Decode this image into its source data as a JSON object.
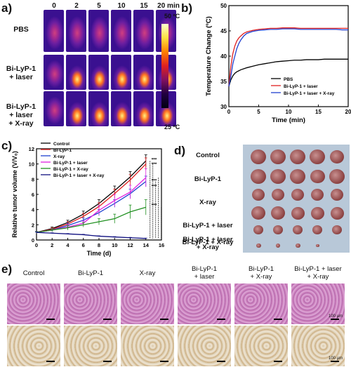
{
  "panel_labels": {
    "a": "a)",
    "b": "b)",
    "c": "c)",
    "d": "d)",
    "e": "e)"
  },
  "panel_a": {
    "time_labels": [
      "0",
      "2",
      "5",
      "10",
      "15",
      "20 min"
    ],
    "row_labels": [
      "PBS",
      "Bi-LyP-1\n+ laser",
      "Bi-LyP-1\n+ laser\n+ X-ray"
    ],
    "colorbar_max": "50 ºC",
    "colorbar_min": "25 ºC"
  },
  "chart_data": [
    {
      "type": "line",
      "panel": "b",
      "xlabel": "Time (min)",
      "ylabel": "Temperature Change (ºC)",
      "xlim": [
        0,
        20
      ],
      "ylim": [
        30,
        50
      ],
      "xticks": [
        0,
        5,
        10,
        15,
        20
      ],
      "yticks": [
        30,
        35,
        40,
        45,
        50
      ],
      "legend_position": "bottom-right",
      "series": [
        {
          "name": "PBS",
          "color": "#000000",
          "marker": "square",
          "x": [
            0,
            0.33,
            0.67,
            1,
            1.33,
            1.67,
            2,
            2.5,
            3,
            4,
            5,
            6,
            7,
            8,
            9,
            10,
            11,
            12,
            13,
            14,
            15,
            16,
            17,
            18,
            19,
            20
          ],
          "y": [
            34,
            35.3,
            36.1,
            36.6,
            36.9,
            37.1,
            37.3,
            37.5,
            37.7,
            38,
            38.3,
            38.5,
            38.7,
            38.9,
            39,
            39.1,
            39.2,
            39.2,
            39.3,
            39.3,
            39.3,
            39.4,
            39.4,
            39.4,
            39.4,
            39.4
          ]
        },
        {
          "name": "Bi-LyP-1 + laser",
          "color": "#e02020",
          "marker": "circle",
          "x": [
            0,
            0.33,
            0.67,
            1,
            1.33,
            1.67,
            2,
            2.5,
            3,
            4,
            5,
            6,
            7,
            8,
            9,
            10,
            11,
            12,
            13,
            14,
            15,
            16,
            17,
            18,
            19,
            20
          ],
          "y": [
            34,
            38,
            40.5,
            42,
            43,
            43.6,
            44,
            44.5,
            44.8,
            45.1,
            45.3,
            45.4,
            45.5,
            45.5,
            45.6,
            45.6,
            45.6,
            45.5,
            45.5,
            45.5,
            45.5,
            45.5,
            45.5,
            45.5,
            45.5,
            45.5
          ]
        },
        {
          "name": "Bi-LyP-1 + laser + X-ray",
          "color": "#2040d0",
          "marker": "triangle",
          "x": [
            0,
            0.33,
            0.67,
            1,
            1.33,
            1.67,
            2,
            2.5,
            3,
            4,
            5,
            6,
            7,
            8,
            9,
            10,
            11,
            12,
            13,
            14,
            15,
            16,
            17,
            18,
            19,
            20
          ],
          "y": [
            34,
            36,
            38.5,
            40,
            41.5,
            42.5,
            43.2,
            44,
            44.5,
            44.9,
            45.1,
            45.2,
            45.3,
            45.3,
            45.4,
            45.4,
            45.4,
            45.3,
            45.3,
            45.3,
            45.3,
            45.3,
            45.3,
            45.3,
            45.2,
            45.2
          ]
        }
      ]
    },
    {
      "type": "line",
      "panel": "c",
      "xlabel": "Time (d)",
      "ylabel": "Relative tumor volume (V/V₀)",
      "xlim": [
        0,
        16
      ],
      "ylim": [
        0,
        12
      ],
      "xticks": [
        0,
        2,
        4,
        6,
        8,
        10,
        12,
        14,
        16
      ],
      "yticks": [
        0,
        2,
        4,
        6,
        8,
        10,
        12
      ],
      "legend_position": "top-left",
      "significance": "***",
      "series": [
        {
          "name": "Control",
          "color": "#000000",
          "marker": "square",
          "x": [
            0,
            2,
            4,
            6,
            8,
            10,
            12,
            14
          ],
          "y": [
            1,
            1.5,
            2.3,
            3.4,
            4.8,
            6.5,
            8.3,
            10.4
          ],
          "err": [
            0.1,
            0.2,
            0.3,
            0.4,
            0.5,
            0.6,
            0.7,
            0.8
          ]
        },
        {
          "name": "Bi-LyP-1",
          "color": "#e02020",
          "marker": "circle",
          "x": [
            0,
            2,
            4,
            6,
            8,
            10,
            12,
            14
          ],
          "y": [
            1,
            1.4,
            2.1,
            3.1,
            4.4,
            6.1,
            7.9,
            10
          ],
          "err": [
            0.1,
            0.2,
            0.3,
            0.4,
            0.5,
            0.6,
            0.7,
            0.8
          ]
        },
        {
          "name": "X-ray",
          "color": "#2040d0",
          "marker": "triangle",
          "x": [
            0,
            2,
            4,
            6,
            8,
            10,
            12,
            14
          ],
          "y": [
            1,
            1.3,
            1.9,
            2.6,
            3.6,
            4.8,
            6.1,
            7.7
          ],
          "err": [
            0.1,
            0.2,
            0.3,
            0.3,
            0.4,
            0.5,
            0.6,
            0.7
          ]
        },
        {
          "name": "Bi-LyP-1 + laser",
          "color": "#e020e0",
          "marker": "triangle-down",
          "x": [
            0,
            2,
            4,
            6,
            8,
            10,
            12,
            14
          ],
          "y": [
            1,
            1.3,
            1.7,
            2.2,
            3.9,
            5.2,
            6.3,
            8.2
          ],
          "err": [
            0.1,
            0.2,
            0.3,
            0.3,
            0.6,
            0.8,
            0.9,
            1.2
          ]
        },
        {
          "name": "Bi-LyP-1 + X-ray",
          "color": "#209020",
          "marker": "diamond",
          "x": [
            0,
            2,
            4,
            6,
            8,
            10,
            12,
            14
          ],
          "y": [
            1,
            1.3,
            1.6,
            2,
            2.4,
            2.8,
            3.7,
            4.3
          ],
          "err": [
            0.1,
            0.2,
            0.3,
            0.3,
            0.4,
            0.6,
            0.9,
            1
          ]
        },
        {
          "name": "Bi-LyP-1 + laser + X-ray",
          "color": "#101080",
          "marker": "triangle-left",
          "x": [
            0,
            2,
            4,
            6,
            8,
            10,
            12,
            14
          ],
          "y": [
            1,
            0.9,
            0.8,
            0.7,
            0.5,
            0.4,
            0.3,
            0.2
          ],
          "err": [
            0.05,
            0.05,
            0.05,
            0.05,
            0.05,
            0.05,
            0.05,
            0.05
          ]
        }
      ]
    }
  ],
  "panel_d": {
    "row_labels": [
      "Control",
      "Bi-LyP-1",
      "X-ray",
      "Bi-LyP-1 + laser",
      "Bi-LyP-1 + X-ray",
      "Bi-LyP-1 + laser\n+ X-ray"
    ]
  },
  "panel_e": {
    "column_labels": [
      "Control",
      "Bi-LyP-1",
      "X-ray",
      "Bi-LyP-1\n+ laser",
      "Bi-LyP-1\n+ X-ray",
      "Bi-LyP-1 + laser\n+ X-ray"
    ],
    "scale_label": "100 μm"
  }
}
